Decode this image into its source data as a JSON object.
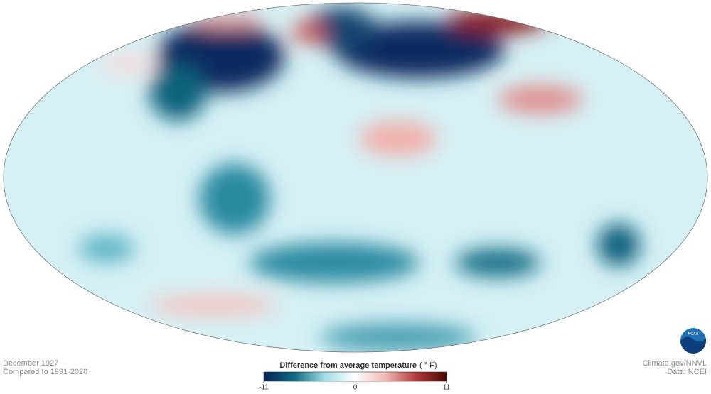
{
  "map": {
    "caption": {
      "date": "December 1927",
      "baseline": "Compared to 1991-2020"
    },
    "credits": {
      "source": "Climate.gov/NNVL",
      "data": "Data: NCEI"
    },
    "logo": "NOAA",
    "legend": {
      "title": "Difference from average temperature",
      "unit": "( ° F)",
      "range": [
        -11,
        11
      ],
      "ticks": [
        -11,
        0,
        11
      ],
      "colors": [
        "#0b2258",
        "#0f6a82",
        "#9fdce6",
        "#ffffff",
        "#f0b8b4",
        "#b33a3a",
        "#4a0505"
      ]
    }
  }
}
